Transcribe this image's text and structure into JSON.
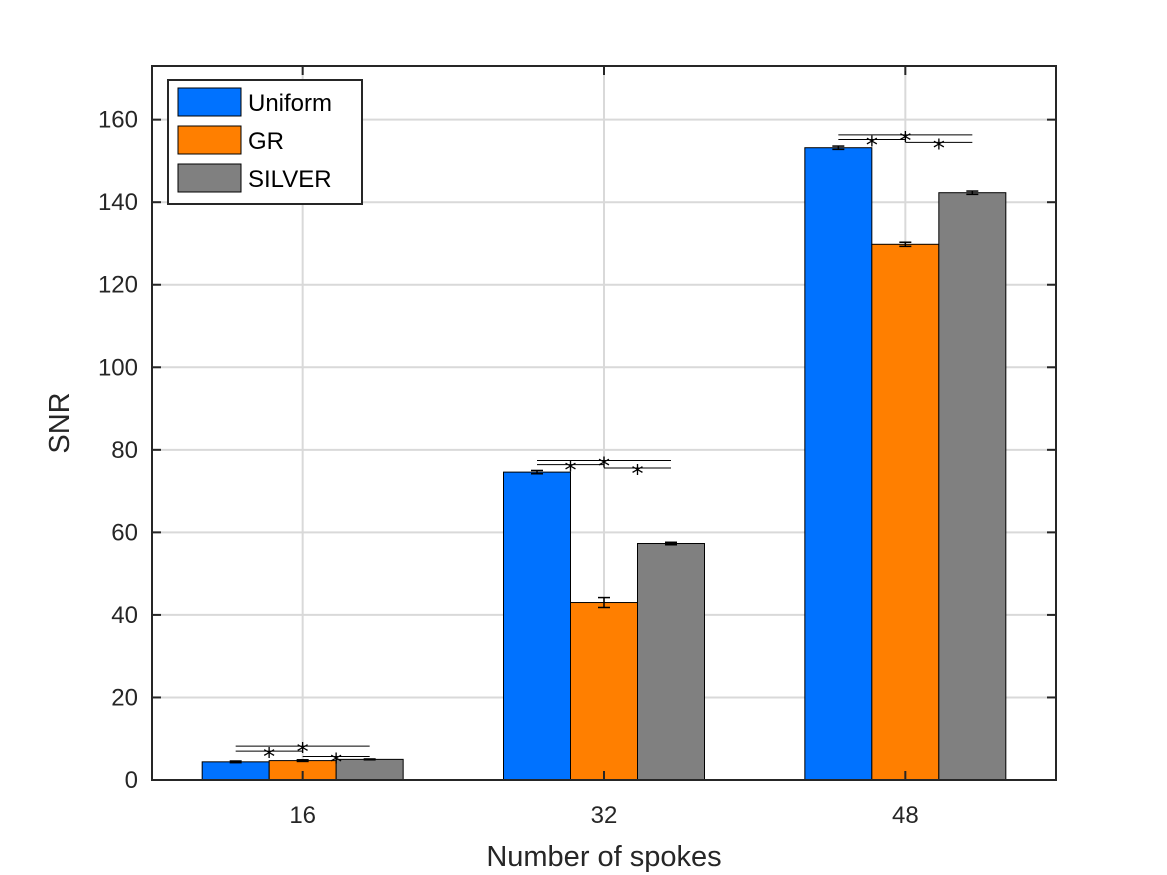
{
  "chart_data": {
    "type": "bar",
    "categories": [
      "16",
      "32",
      "48"
    ],
    "series": [
      {
        "name": "Uniform",
        "color": "#0072FF",
        "values": [
          4.4,
          74.6,
          153.2
        ],
        "errors": [
          0.2,
          0.4,
          0.4
        ]
      },
      {
        "name": "GR",
        "color": "#FF7F00",
        "values": [
          4.7,
          43.0,
          129.8
        ],
        "errors": [
          0.2,
          1.2,
          0.5
        ]
      },
      {
        "name": "SILVER",
        "color": "#808080",
        "values": [
          5.0,
          57.3,
          142.3
        ],
        "errors": [
          0.1,
          0.3,
          0.4
        ]
      }
    ],
    "xlabel": "Number of spokes",
    "ylabel": "SNR",
    "ylim": [
      0,
      173
    ],
    "yticks": [
      0,
      20,
      40,
      60,
      80,
      100,
      120,
      140,
      160
    ],
    "grid": true,
    "legend_position": "top-left",
    "significance_marker": "*",
    "significance_levels": [
      {
        "category": "16",
        "levels": [
          7.0,
          5.7,
          8.2
        ]
      },
      {
        "category": "32",
        "levels": [
          76.4,
          75.6,
          77.4
        ]
      },
      {
        "category": "48",
        "levels": [
          155.2,
          154.5,
          156.3
        ]
      }
    ]
  }
}
